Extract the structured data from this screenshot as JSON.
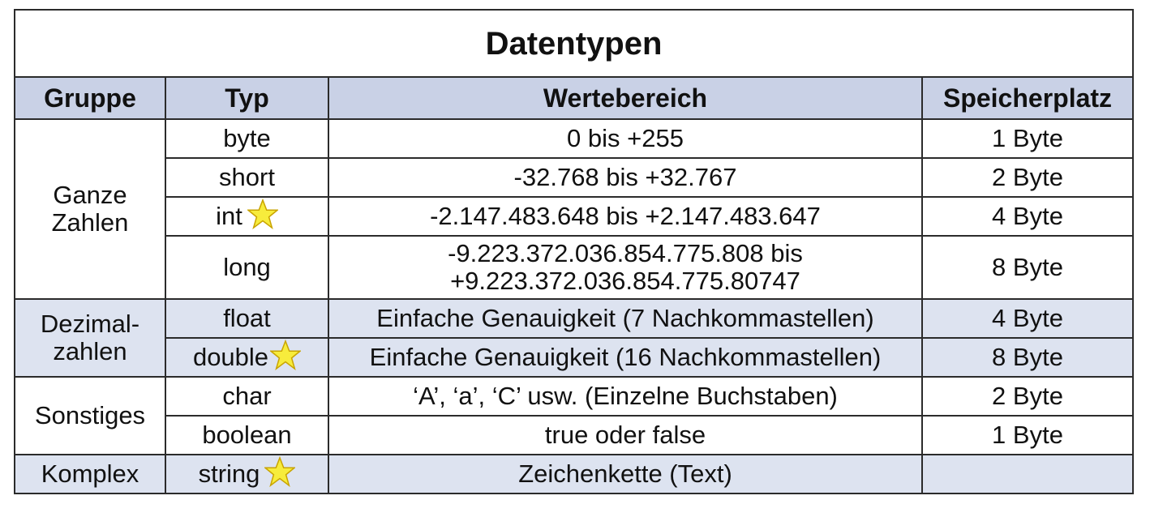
{
  "title": "Datentypen",
  "headers": {
    "gruppe": "Gruppe",
    "typ": "Typ",
    "wertebereich": "Wertebereich",
    "speicherplatz": "Speicherplatz"
  },
  "groups": {
    "ganze_zahlen_line1": "Ganze",
    "ganze_zahlen_line2": "Zahlen",
    "dezimal_line1": "Dezimal-",
    "dezimal_line2": "zahlen",
    "sonstiges": "Sonstiges",
    "komplex": "Komplex"
  },
  "rows": [
    {
      "typ": "byte",
      "wert": "0 bis +255",
      "speicher": "1 Byte",
      "star": false
    },
    {
      "typ": "short",
      "wert": "-32.768 bis +32.767",
      "speicher": "2 Byte",
      "star": false
    },
    {
      "typ": "int",
      "wert": "-2.147.483.648 bis +2.147.483.647",
      "speicher": "4 Byte",
      "star": true
    },
    {
      "typ": "long",
      "wert_line1": "-9.223.372.036.854.775.808 bis",
      "wert_line2": "+9.223.372.036.854.775.80747",
      "speicher": "8 Byte",
      "star": false
    },
    {
      "typ": "float",
      "wert": "Einfache Genauigkeit (7 Nachkommastellen)",
      "speicher": "4 Byte",
      "star": false
    },
    {
      "typ": "double",
      "wert": "Einfache Genauigkeit (16 Nachkommastellen)",
      "speicher": "8 Byte",
      "star": true
    },
    {
      "typ": "char",
      "wert": "‘A’, ‘a’, ‘C’ usw. (Einzelne Buchstaben)",
      "speicher": "2 Byte",
      "star": false
    },
    {
      "typ": "boolean",
      "wert": "true oder false",
      "speicher": "1 Byte",
      "star": false
    },
    {
      "typ": "string",
      "wert": "Zeichenkette (Text)",
      "speicher": "",
      "star": true
    }
  ],
  "colors": {
    "header_fill": "#c9d1e6",
    "shaded_row_fill": "#dde3f0",
    "star_fill": "#f7ec3c",
    "star_stroke": "#c9a400"
  },
  "icons": {
    "star": "star-icon"
  }
}
